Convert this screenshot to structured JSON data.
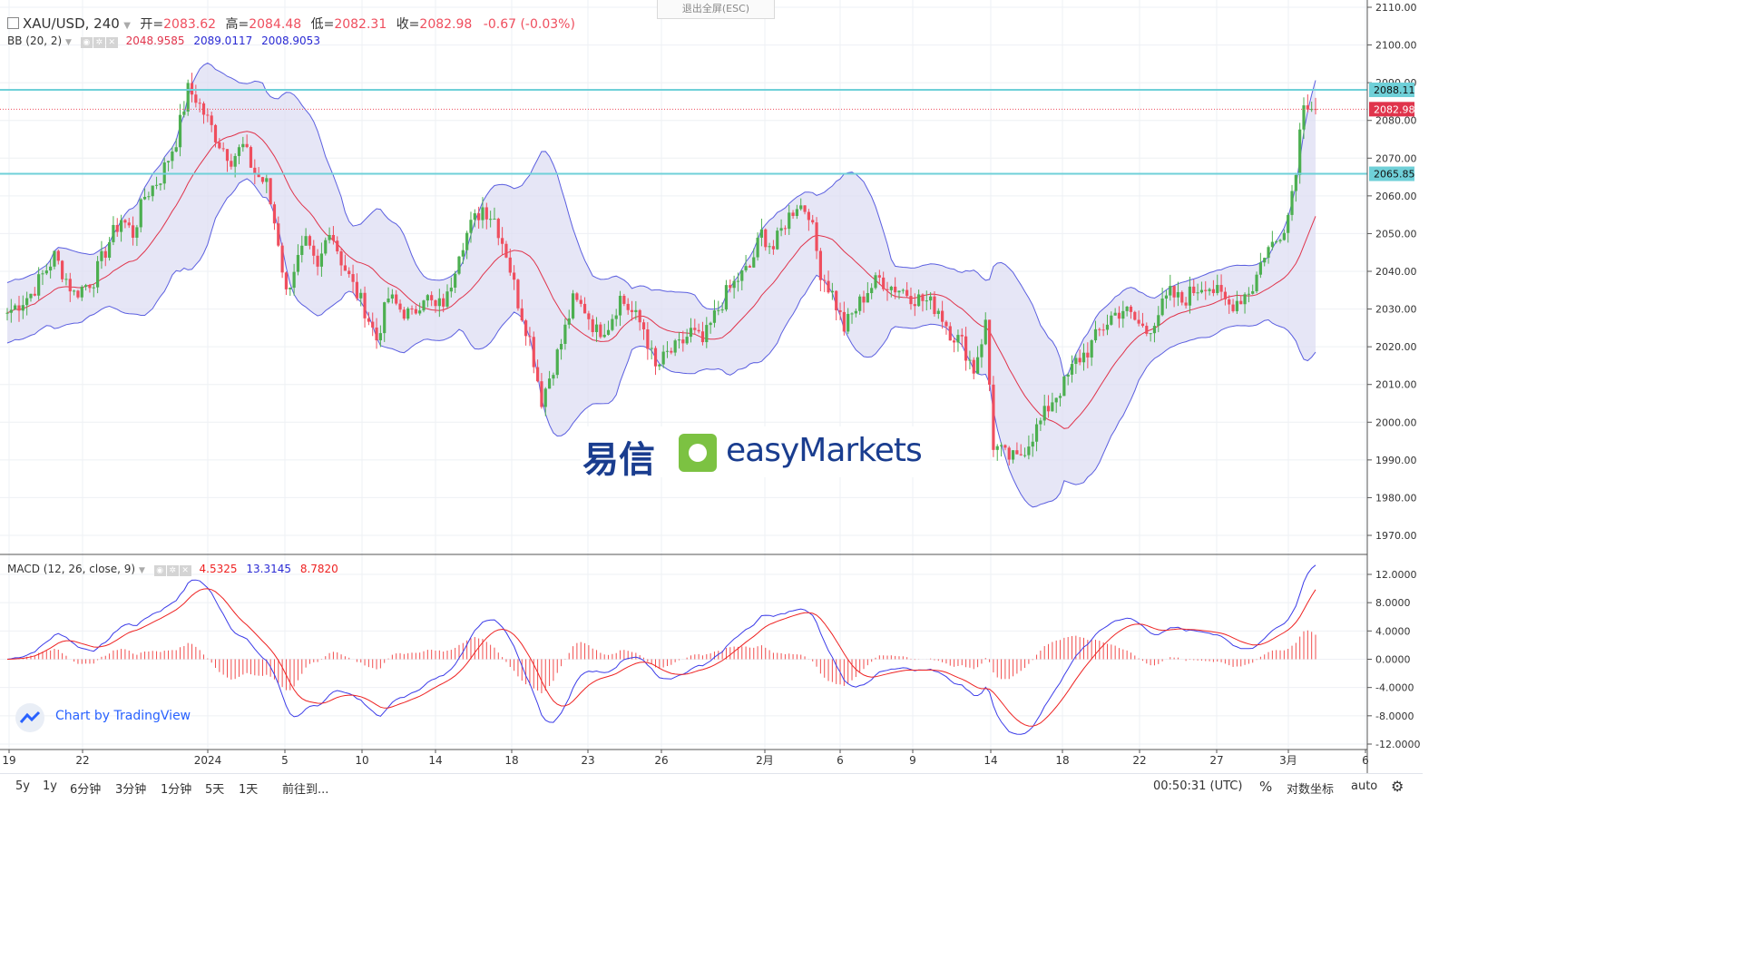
{
  "header": {
    "symbol": "XAU/USD, 240",
    "open_label": "开=",
    "open": "2083.62",
    "high_label": "高=",
    "high": "2084.48",
    "low_label": "低=",
    "low": "2082.31",
    "close_label": "收=",
    "close": "2082.98",
    "change": "-0.67 (-0.03%)"
  },
  "exit_fullscreen": "退出全屏(ESC)",
  "bb_legend": {
    "label": "BB (20, 2)",
    "basis": "2048.9585",
    "upper": "2089.0117",
    "lower": "2008.9053"
  },
  "macd_legend": {
    "label": "MACD (12, 26, close, 9)",
    "hist": "4.5325",
    "macd": "13.3145",
    "signal": "8.7820"
  },
  "price_axis_labels": [
    "2110.00",
    "2100.00",
    "2090.00",
    "2080.00",
    "2070.00",
    "2060.00",
    "2050.00",
    "2040.00",
    "2030.00",
    "2020.00",
    "2010.00",
    "2000.00",
    "1990.00",
    "1980.00",
    "1970.00"
  ],
  "macd_axis_labels": [
    "12.0000",
    "8.0000",
    "4.0000",
    "0.0000",
    "-4.0000",
    "-8.0000",
    "-12.0000"
  ],
  "price_tags": [
    {
      "value": "2088.11",
      "color": "#6fd0d8"
    },
    {
      "value": "2082.98",
      "color": "#e0344c"
    },
    {
      "value": "2065.85",
      "color": "#6fd0d8"
    }
  ],
  "x_axis_labels": [
    "19",
    "22",
    "2024",
    "5",
    "10",
    "14",
    "18",
    "23",
    "26",
    "2月",
    "6",
    "9",
    "14",
    "18",
    "22",
    "27",
    "3月",
    "6"
  ],
  "watermark": {
    "cn": "易信",
    "en": "easyMarkets"
  },
  "tradingview_credit": "Chart by TradingView",
  "bottom_bar": {
    "ranges": [
      "5y",
      "1y",
      "6分钟",
      "3分钟",
      "1分钟",
      "5天",
      "1天"
    ],
    "goto": "前往到...",
    "time": "00:50:31 (UTC)",
    "percent": "%",
    "log": "对数坐标",
    "auto": "auto"
  },
  "colors": {
    "up": "#4caf50",
    "down": "#ef4e5e",
    "bb_band": "#5b5fe0",
    "bb_fill": "#dcdcf2",
    "bb_basis": "#e0344c",
    "macd": "#3b3be8",
    "signal": "#ee2222",
    "hline": "#6fd0d8"
  },
  "chart_data": {
    "type": "candlestick",
    "symbol": "XAU/USD",
    "timeframe": "240",
    "ylim": [
      1965,
      2112
    ],
    "hlines": [
      2088.11,
      2065.85
    ],
    "last_price": 2082.98,
    "x_ticks": [
      "19",
      "22",
      "2024",
      "5",
      "10",
      "14",
      "18",
      "23",
      "26",
      "2月",
      "6",
      "9",
      "14",
      "18",
      "22",
      "27",
      "3月",
      "6"
    ],
    "close_path": [
      [
        0,
        2029
      ],
      [
        6,
        2034
      ],
      [
        12,
        2044
      ],
      [
        17,
        2034
      ],
      [
        22,
        2038
      ],
      [
        26,
        2048
      ],
      [
        29,
        2054
      ],
      [
        32,
        2050
      ],
      [
        35,
        2060
      ],
      [
        39,
        2065
      ],
      [
        43,
        2075
      ],
      [
        46,
        2088
      ],
      [
        48,
        2086
      ],
      [
        51,
        2080
      ],
      [
        54,
        2074
      ],
      [
        57,
        2070
      ],
      [
        60,
        2073
      ],
      [
        63,
        2066
      ],
      [
        66,
        2063
      ],
      [
        69,
        2048
      ],
      [
        71,
        2034
      ],
      [
        73,
        2041
      ],
      [
        76,
        2047
      ],
      [
        79,
        2040
      ],
      [
        82,
        2052
      ],
      [
        85,
        2043
      ],
      [
        88,
        2036
      ],
      [
        91,
        2030
      ],
      [
        94,
        2022
      ],
      [
        97,
        2033
      ],
      [
        100,
        2030
      ],
      [
        103,
        2028
      ],
      [
        106,
        2034
      ],
      [
        109,
        2030
      ],
      [
        112,
        2033
      ],
      [
        115,
        2046
      ],
      [
        118,
        2052
      ],
      [
        121,
        2057
      ],
      [
        124,
        2054
      ],
      [
        127,
        2045
      ],
      [
        130,
        2032
      ],
      [
        133,
        2022
      ],
      [
        136,
        2006
      ],
      [
        138,
        2012
      ],
      [
        141,
        2021
      ],
      [
        144,
        2032
      ],
      [
        147,
        2030
      ],
      [
        150,
        2024
      ],
      [
        153,
        2026
      ],
      [
        156,
        2033
      ],
      [
        159,
        2029
      ],
      [
        162,
        2025
      ],
      [
        165,
        2014
      ],
      [
        168,
        2018
      ],
      [
        171,
        2020
      ],
      [
        174,
        2024
      ],
      [
        177,
        2021
      ],
      [
        180,
        2028
      ],
      [
        183,
        2034
      ],
      [
        186,
        2038
      ],
      [
        189,
        2041
      ],
      [
        192,
        2050
      ],
      [
        195,
        2046
      ],
      [
        198,
        2053
      ],
      [
        201,
        2058
      ],
      [
        204,
        2056
      ],
      [
        207,
        2040
      ],
      [
        210,
        2034
      ],
      [
        213,
        2025
      ],
      [
        216,
        2030
      ],
      [
        219,
        2035
      ],
      [
        222,
        2038
      ],
      [
        225,
        2036
      ],
      [
        228,
        2035
      ],
      [
        231,
        2033
      ],
      [
        234,
        2032
      ],
      [
        237,
        2030
      ],
      [
        240,
        2024
      ],
      [
        243,
        2021
      ],
      [
        246,
        2014
      ],
      [
        249,
        2026
      ],
      [
        251,
        1994
      ],
      [
        254,
        1991
      ],
      [
        257,
        1990
      ],
      [
        260,
        1995
      ],
      [
        263,
        2000
      ],
      [
        266,
        2006
      ],
      [
        269,
        2010
      ],
      [
        272,
        2016
      ],
      [
        275,
        2019
      ],
      [
        278,
        2024
      ],
      [
        281,
        2028
      ],
      [
        284,
        2030
      ],
      [
        287,
        2027
      ],
      [
        290,
        2024
      ],
      [
        293,
        2029
      ],
      [
        296,
        2034
      ],
      [
        299,
        2032
      ],
      [
        302,
        2035
      ],
      [
        305,
        2037
      ],
      [
        308,
        2034
      ],
      [
        311,
        2031
      ],
      [
        314,
        2033
      ],
      [
        317,
        2036
      ],
      [
        320,
        2045
      ],
      [
        323,
        2048
      ],
      [
        326,
        2055
      ],
      [
        328,
        2068
      ],
      [
        330,
        2086
      ],
      [
        332,
        2084
      ],
      [
        333,
        2083
      ]
    ],
    "bollinger": {
      "period": 20,
      "mult": 2,
      "basis_last": 2048.9585,
      "upper_last": 2089.0117,
      "lower_last": 2008.9053
    },
    "macd": {
      "params": "12, 26, close, 9",
      "ylim": [
        -12,
        14
      ],
      "hist_last": 4.5325,
      "macd_last": 13.3145,
      "signal_last": 8.782
    }
  }
}
